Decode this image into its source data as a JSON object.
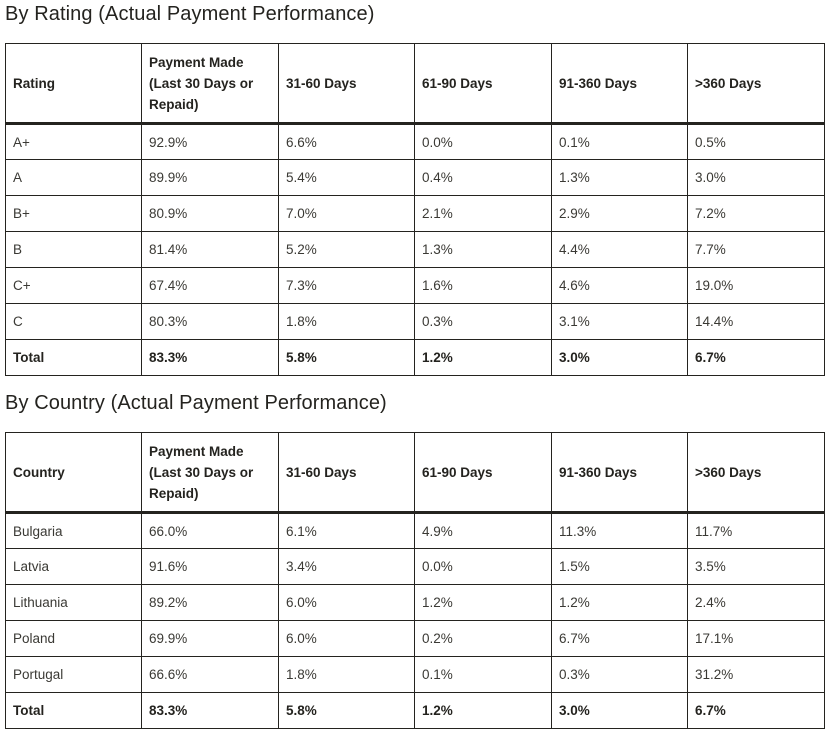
{
  "sections": {
    "rating": {
      "title": "By Rating (Actual Payment Performance)",
      "headers": [
        "Rating",
        "Payment Made (Last 30 Days or Repaid)",
        "31-60 Days",
        "61-90 Days",
        "91-360 Days",
        ">360 Days"
      ],
      "rows": [
        [
          "A+",
          "92.9%",
          "6.6%",
          "0.0%",
          "0.1%",
          "0.5%"
        ],
        [
          "A",
          "89.9%",
          "5.4%",
          "0.4%",
          "1.3%",
          "3.0%"
        ],
        [
          "B+",
          "80.9%",
          "7.0%",
          "2.1%",
          "2.9%",
          "7.2%"
        ],
        [
          "B",
          "81.4%",
          "5.2%",
          "1.3%",
          "4.4%",
          "7.7%"
        ],
        [
          "C+",
          "67.4%",
          "7.3%",
          "1.6%",
          "4.6%",
          "19.0%"
        ],
        [
          "C",
          "80.3%",
          "1.8%",
          "0.3%",
          "3.1%",
          "14.4%"
        ]
      ],
      "total": [
        "Total",
        "83.3%",
        "5.8%",
        "1.2%",
        "3.0%",
        "6.7%"
      ]
    },
    "country": {
      "title": "By Country (Actual Payment Performance)",
      "headers": [
        "Country",
        "Payment Made (Last 30 Days or Repaid)",
        "31-60 Days",
        "61-90 Days",
        "91-360 Days",
        ">360 Days"
      ],
      "rows": [
        [
          "Bulgaria",
          "66.0%",
          "6.1%",
          "4.9%",
          "11.3%",
          "11.7%"
        ],
        [
          "Latvia",
          "91.6%",
          "3.4%",
          "0.0%",
          "1.5%",
          "3.5%"
        ],
        [
          "Lithuania",
          "89.2%",
          "6.0%",
          "1.2%",
          "1.2%",
          "2.4%"
        ],
        [
          "Poland",
          "69.9%",
          "6.0%",
          "0.2%",
          "6.7%",
          "17.1%"
        ],
        [
          "Portugal",
          "66.6%",
          "1.8%",
          "0.1%",
          "0.3%",
          "31.2%"
        ]
      ],
      "total": [
        "Total",
        "83.3%",
        "5.8%",
        "1.2%",
        "3.0%",
        "6.7%"
      ]
    }
  },
  "colors": {
    "text": "#24231f",
    "border": "#24231f",
    "background": "#ffffff"
  }
}
